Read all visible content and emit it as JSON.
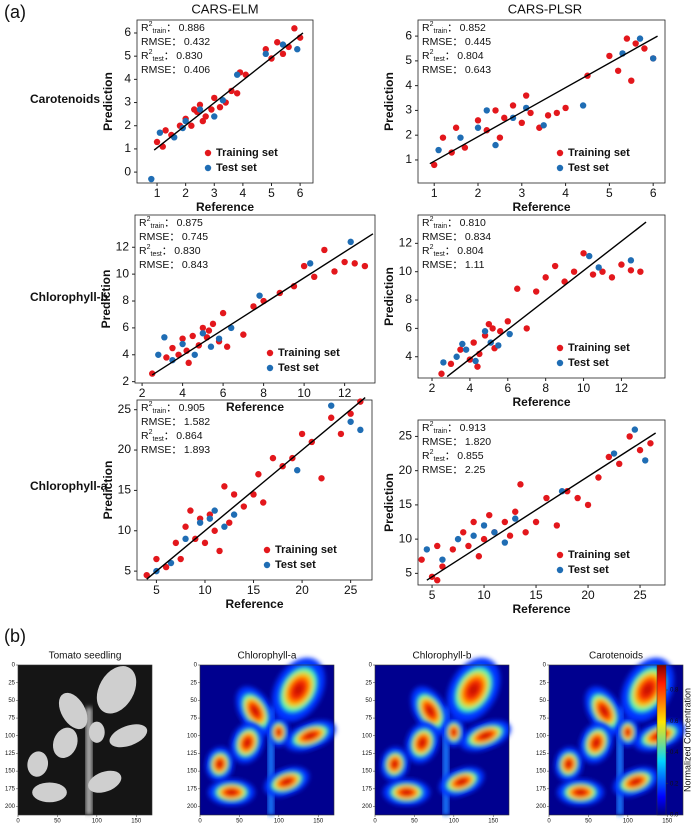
{
  "figure": {
    "label_a": "(a)",
    "columns": [
      "CARS-ELM",
      "CARS-PLSR"
    ],
    "rows": [
      "Carotenoids",
      "Chlorophyll-b",
      "Chlorophyll-a"
    ]
  },
  "chart_data": [
    {
      "type": "scatter",
      "x_label": "Reference",
      "y_label": "Prediction",
      "xlim": [
        0.3,
        6.45
      ],
      "ylim": [
        -0.47,
        6.56
      ],
      "xticks": [
        1,
        2,
        3,
        4,
        5,
        6
      ],
      "yticks": [
        0,
        1,
        2,
        3,
        4,
        5,
        6
      ],
      "legend_position": "lower right",
      "stats": [
        {
          "symbol": "R",
          "sup": "2",
          "sub": "train",
          "sep": "：",
          "value": "0.886"
        },
        {
          "symbol": "RMSE",
          "sep": "：",
          "value": "0.432"
        },
        {
          "symbol": "R",
          "sup": "2",
          "sub": "test",
          "sep": "：",
          "value": "0.830"
        },
        {
          "symbol": "RMSE",
          "sep": "：",
          "value": "0.406"
        }
      ],
      "fit_line": {
        "color": "#000000",
        "x": [
          0.9,
          6.1
        ],
        "y": [
          0.95,
          6.0
        ]
      },
      "series": [
        {
          "name": "Training set",
          "color": "#e3171c",
          "x": [
            1.0,
            1.2,
            1.5,
            1.8,
            2.0,
            2.2,
            2.4,
            2.5,
            2.7,
            2.9,
            3.0,
            3.2,
            3.4,
            3.6,
            3.9,
            4.1,
            4.8,
            5.0,
            5.2,
            5.4,
            5.6,
            5.8,
            6.0,
            1.3,
            2.6,
            2.3,
            3.8
          ],
          "values": [
            1.3,
            1.1,
            1.6,
            2.0,
            2.3,
            2.0,
            2.6,
            2.9,
            2.4,
            2.7,
            3.2,
            2.8,
            3.0,
            3.5,
            4.3,
            4.2,
            5.3,
            4.9,
            5.6,
            5.1,
            5.4,
            6.2,
            5.8,
            1.8,
            2.2,
            2.7,
            3.4
          ]
        },
        {
          "name": "Test set",
          "color": "#1f6db4",
          "x": [
            0.8,
            1.1,
            1.6,
            2.0,
            2.5,
            3.0,
            3.3,
            3.8,
            4.8,
            5.4,
            5.9,
            1.9
          ],
          "values": [
            -0.3,
            1.7,
            1.5,
            2.2,
            2.7,
            2.4,
            3.1,
            4.2,
            5.1,
            5.5,
            5.3,
            1.9
          ]
        }
      ]
    },
    {
      "type": "scatter",
      "x_label": "Reference",
      "y_label": "Prediction",
      "xlim": [
        0.63,
        6.27
      ],
      "ylim": [
        0.07,
        6.65
      ],
      "xticks": [
        1,
        2,
        3,
        4,
        5,
        6
      ],
      "yticks": [
        1,
        2,
        3,
        4,
        5,
        6
      ],
      "legend_position": "lower right",
      "stats": [
        {
          "symbol": "R",
          "sup": "2",
          "sub": "train",
          "sep": "：",
          "value": "0.852"
        },
        {
          "symbol": "RMSE",
          "sep": "：",
          "value": "0.445"
        },
        {
          "symbol": "R",
          "sup": "2",
          "sub": "test",
          "sep": "：",
          "value": "0.804"
        },
        {
          "symbol": "RMSE",
          "sep": "：",
          "value": "0.643"
        }
      ],
      "fit_line": {
        "color": "#000000",
        "x": [
          0.9,
          6.1
        ],
        "y": [
          0.85,
          6.0
        ]
      },
      "series": [
        {
          "name": "Training set",
          "color": "#e3171c",
          "x": [
            1.0,
            1.2,
            1.5,
            1.7,
            2.0,
            2.2,
            2.4,
            2.6,
            2.8,
            3.0,
            3.2,
            3.4,
            3.6,
            3.8,
            4.0,
            4.5,
            5.0,
            5.2,
            5.4,
            5.5,
            5.6,
            5.8,
            6.0,
            1.4,
            2.5,
            3.1
          ],
          "values": [
            0.8,
            1.9,
            2.3,
            1.5,
            2.6,
            2.2,
            3.0,
            2.7,
            3.2,
            2.5,
            2.9,
            2.3,
            2.8,
            2.9,
            3.1,
            4.4,
            5.2,
            4.6,
            5.9,
            4.2,
            5.7,
            5.5,
            5.1,
            1.3,
            1.9,
            3.6
          ]
        },
        {
          "name": "Test set",
          "color": "#1f6db4",
          "x": [
            1.1,
            1.6,
            2.0,
            2.4,
            2.8,
            3.1,
            3.5,
            4.4,
            5.3,
            5.7,
            6.0,
            2.2
          ],
          "values": [
            1.4,
            1.9,
            2.3,
            1.6,
            2.7,
            3.1,
            2.4,
            3.2,
            5.3,
            5.9,
            5.1,
            3.0
          ]
        }
      ]
    },
    {
      "type": "scatter",
      "x_label": "Reference",
      "y_label": "Prediction",
      "xlim": [
        1.65,
        13.5
      ],
      "ylim": [
        1.9,
        14.4
      ],
      "xticks": [
        2,
        4,
        6,
        8,
        10,
        12
      ],
      "yticks": [
        2,
        4,
        6,
        8,
        10,
        12
      ],
      "legend_position": "lower right",
      "stats": [
        {
          "symbol": "R",
          "sup": "2",
          "sub": "train",
          "sep": "：",
          "value": "0.875"
        },
        {
          "symbol": "RMSE",
          "sep": "：",
          "value": "0.745"
        },
        {
          "symbol": "R",
          "sup": "2",
          "sub": "test",
          "sep": "：",
          "value": "0.830"
        },
        {
          "symbol": "RMSE",
          "sep": "：",
          "value": "0.843"
        }
      ],
      "fit_line": {
        "color": "#000000",
        "x": [
          2.5,
          13.4
        ],
        "y": [
          2.5,
          13.0
        ]
      },
      "series": [
        {
          "name": "Training set",
          "color": "#e3171c",
          "x": [
            2.5,
            3.2,
            3.5,
            3.8,
            4.0,
            4.2,
            4.5,
            4.8,
            5.0,
            5.2,
            5.5,
            5.8,
            6.0,
            6.2,
            7.0,
            7.5,
            8.0,
            8.8,
            9.5,
            10.0,
            10.5,
            11.0,
            11.5,
            12.0,
            12.5,
            13.0,
            4.3,
            5.3
          ],
          "values": [
            2.6,
            3.8,
            4.5,
            4.0,
            5.2,
            4.3,
            5.4,
            4.7,
            6.0,
            5.3,
            6.3,
            5.0,
            7.1,
            4.6,
            5.5,
            7.6,
            8.0,
            8.6,
            9.1,
            10.6,
            9.8,
            11.8,
            10.2,
            10.9,
            10.8,
            10.6,
            3.4,
            5.8
          ]
        },
        {
          "name": "Test set",
          "color": "#1f6db4",
          "x": [
            2.8,
            3.5,
            4.0,
            4.6,
            5.0,
            5.4,
            5.8,
            6.4,
            7.8,
            10.3,
            12.3,
            3.1
          ],
          "values": [
            4.0,
            3.6,
            4.8,
            4.0,
            5.6,
            4.6,
            5.2,
            6.0,
            8.4,
            10.8,
            12.4,
            5.3
          ]
        }
      ]
    },
    {
      "type": "scatter",
      "x_label": "Reference",
      "y_label": "Prediction",
      "xlim": [
        1.26,
        14.3
      ],
      "ylim": [
        2.5,
        14.0
      ],
      "xticks": [
        2,
        4,
        6,
        8,
        10,
        12
      ],
      "yticks": [
        4,
        6,
        8,
        10,
        12
      ],
      "legend_position": "lower right",
      "stats": [
        {
          "symbol": "R",
          "sup": "2",
          "sub": "train",
          "sep": "：",
          "value": "0.810"
        },
        {
          "symbol": "RMSE",
          "sep": "：",
          "value": "0.834"
        },
        {
          "symbol": "R",
          "sup": "2",
          "sub": "test",
          "sep": "：",
          "value": "0.804"
        },
        {
          "symbol": "RMSE",
          "sep": "：",
          "value": "1.11"
        }
      ],
      "fit_line": {
        "color": "#000000",
        "x": [
          2.8,
          13.3
        ],
        "y": [
          2.6,
          13.5
        ]
      },
      "series": [
        {
          "name": "Training set",
          "color": "#e3171c",
          "x": [
            2.5,
            3.0,
            3.5,
            4.0,
            4.2,
            4.5,
            4.8,
            5.0,
            5.3,
            5.6,
            6.0,
            6.5,
            7.0,
            7.5,
            8.0,
            8.5,
            9.0,
            9.5,
            10.0,
            10.5,
            11.0,
            11.5,
            12.0,
            12.5,
            13.0,
            4.4,
            5.2
          ],
          "values": [
            2.8,
            3.5,
            4.5,
            3.8,
            5.0,
            4.2,
            5.5,
            6.3,
            4.6,
            5.8,
            6.5,
            8.8,
            6.0,
            8.6,
            9.6,
            10.4,
            9.3,
            10.0,
            11.3,
            9.8,
            10.0,
            9.6,
            10.5,
            10.1,
            10.0,
            3.3,
            6.0
          ]
        },
        {
          "name": "Test set",
          "color": "#1f6db4",
          "x": [
            2.6,
            3.3,
            3.8,
            4.3,
            4.8,
            5.1,
            5.5,
            6.1,
            10.3,
            10.8,
            12.5,
            3.6
          ],
          "values": [
            3.6,
            4.0,
            4.5,
            3.7,
            5.8,
            5.0,
            4.8,
            5.6,
            11.1,
            10.3,
            10.8,
            4.9
          ]
        }
      ]
    },
    {
      "type": "scatter",
      "x_label": "Reference",
      "y_label": "Prediction",
      "xlim": [
        3.0,
        27.2
      ],
      "ylim": [
        3.9,
        26.2
      ],
      "xticks": [
        5,
        10,
        15,
        20,
        25
      ],
      "yticks": [
        5,
        10,
        15,
        20,
        25
      ],
      "legend_position": "lower right",
      "stats": [
        {
          "symbol": "R",
          "sup": "2",
          "sub": "train",
          "sep": "：",
          "value": "0.905"
        },
        {
          "symbol": "RMSE",
          "sep": "：",
          "value": "1.582"
        },
        {
          "symbol": "R",
          "sup": "2",
          "sub": "test",
          "sep": "：",
          "value": "0.864"
        },
        {
          "symbol": "RMSE",
          "sep": "：",
          "value": "1.893"
        }
      ],
      "fit_line": {
        "color": "#000000",
        "x": [
          4,
          26.5
        ],
        "y": [
          4,
          26.5
        ]
      },
      "series": [
        {
          "name": "Training set",
          "color": "#e3171c",
          "x": [
            4,
            5,
            6,
            7,
            7.5,
            8,
            9,
            9.5,
            10,
            10.5,
            11,
            12,
            12.5,
            13,
            14,
            15,
            15.5,
            16,
            17,
            18,
            19,
            20,
            21,
            22,
            23,
            24,
            25,
            26,
            8.5,
            11.5
          ],
          "values": [
            4.5,
            6.5,
            5.5,
            8.5,
            6.5,
            10.5,
            9.0,
            11.5,
            8.5,
            12.0,
            10.0,
            15.5,
            11.0,
            14.5,
            13.0,
            14.5,
            17.0,
            13.5,
            19.0,
            18.0,
            19.0,
            22.0,
            21.0,
            16.5,
            24.0,
            22.0,
            24.5,
            26.0,
            12.5,
            7.5
          ]
        },
        {
          "name": "Test set",
          "color": "#1f6db4",
          "x": [
            5,
            6.5,
            8,
            9.5,
            10.5,
            11,
            12,
            13,
            19.5,
            23,
            25,
            26
          ],
          "values": [
            5,
            6,
            9,
            11,
            11.5,
            12.5,
            10.5,
            12,
            17.5,
            25.5,
            23.5,
            22.5
          ]
        }
      ]
    },
    {
      "type": "scatter",
      "x_label": "Reference",
      "y_label": "Prediction",
      "xlim": [
        3.65,
        27.4
      ],
      "ylim": [
        3.3,
        27.4
      ],
      "xticks": [
        5,
        10,
        15,
        20,
        25
      ],
      "yticks": [
        5,
        10,
        15,
        20,
        25
      ],
      "legend_position": "lower right",
      "stats": [
        {
          "symbol": "R",
          "sup": "2",
          "sub": "train",
          "sep": "：",
          "value": "0.913"
        },
        {
          "symbol": "RMSE",
          "sep": "：",
          "value": "1.820"
        },
        {
          "symbol": "R",
          "sup": "2",
          "sub": "test",
          "sep": "：",
          "value": "0.855"
        },
        {
          "symbol": "RMSE",
          "sep": "：",
          "value": "2.25"
        }
      ],
      "fit_line": {
        "color": "#000000",
        "x": [
          4.5,
          26.5
        ],
        "y": [
          4,
          25.5
        ]
      },
      "series": [
        {
          "name": "Training set",
          "color": "#e3171c",
          "x": [
            4,
            5,
            5.5,
            6,
            7,
            8,
            8.5,
            9,
            10,
            10.5,
            11,
            12,
            12.5,
            13,
            14,
            15,
            16,
            17,
            18,
            19,
            20,
            21,
            22,
            23,
            24,
            25,
            26,
            5.5,
            9.5,
            13.5
          ],
          "values": [
            7,
            4.5,
            9,
            6,
            8.5,
            11,
            9,
            12.5,
            10,
            13.5,
            11,
            12.5,
            10.5,
            14,
            11,
            12.5,
            16,
            12,
            17,
            16,
            15,
            19,
            22,
            21,
            25,
            23,
            24,
            4,
            7.5,
            18
          ]
        },
        {
          "name": "Test set",
          "color": "#1f6db4",
          "x": [
            4.5,
            6,
            7.5,
            9,
            10,
            11,
            12,
            13,
            17.5,
            22.5,
            24.5,
            25.5
          ],
          "values": [
            8.5,
            7,
            10,
            10.5,
            12,
            11,
            9.5,
            13,
            17,
            22.5,
            26,
            21.5
          ]
        }
      ]
    }
  ],
  "panel_b": {
    "label": "(b)",
    "images": [
      {
        "title": "Tomato seedling"
      },
      {
        "title": "Chlorophyll-a"
      },
      {
        "title": "Chlorophyll-b"
      },
      {
        "title": "Carotenoids"
      }
    ],
    "xlim": [
      0,
      170
    ],
    "ylim": [
      0,
      212
    ],
    "xticks": [
      0,
      50,
      100,
      150
    ],
    "yticks": [
      0,
      25,
      50,
      75,
      100,
      125,
      150,
      175,
      200
    ],
    "colorbar": {
      "label": "Normalized Concentration",
      "lim": [
        0,
        0.96
      ],
      "ticks": [
        {
          "value": 0,
          "label": "0.0"
        },
        {
          "value": 0.2,
          "label": "0.2"
        },
        {
          "value": 0.4,
          "label": "0.4"
        },
        {
          "value": 0.6,
          "label": "0.6"
        },
        {
          "value": 0.8,
          "label": "0.8"
        }
      ]
    }
  }
}
